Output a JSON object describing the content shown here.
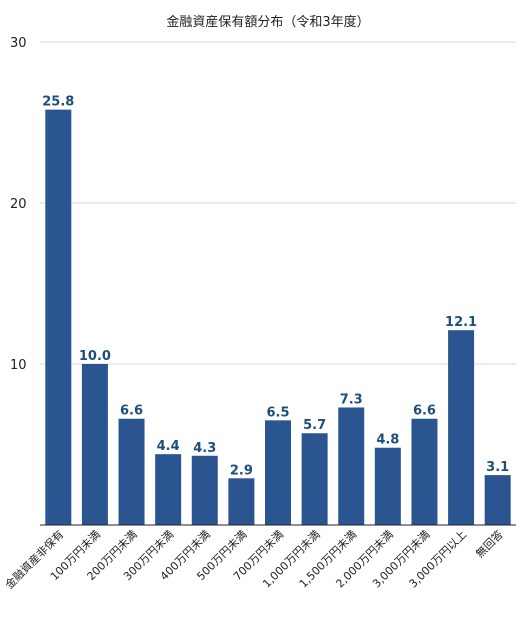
{
  "chart_data": {
    "type": "bar",
    "title": "金融資産保有額分布（令和3年度）",
    "xlabel": "",
    "ylabel": "",
    "ylim": [
      0,
      30
    ],
    "yticks": [
      10,
      20,
      30
    ],
    "grid": true,
    "legend": "none",
    "categories": [
      "金融資産非保有",
      "100万円未満",
      "200万円未満",
      "300万円未満",
      "400万円未満",
      "500万円未満",
      "700万円未満",
      "1,000万円未満",
      "1,500万円未満",
      "2,000万円未満",
      "3,000万円未満",
      "3,000万円以上",
      "無回答"
    ],
    "values": [
      25.8,
      10.0,
      6.6,
      4.4,
      4.3,
      2.9,
      6.5,
      5.7,
      7.3,
      4.8,
      6.6,
      12.1,
      3.1
    ],
    "data_labels": [
      "25.8",
      "10.0",
      "6.6",
      "4.4",
      "4.3",
      "2.9",
      "6.5",
      "5.7",
      "7.3",
      "4.8",
      "6.6",
      "12.1",
      "3.1"
    ],
    "colors": {
      "bar": "#2b5590",
      "label": "#1f4e7a",
      "grid": "#d9d9d9",
      "axis": "#222222"
    }
  }
}
